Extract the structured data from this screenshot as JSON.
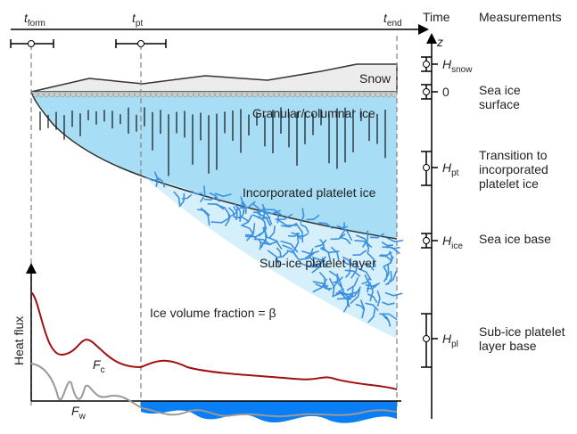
{
  "header": {
    "time": "Time",
    "measurements": "Measurements",
    "z": "z"
  },
  "times": [
    {
      "main": "t",
      "sub": "form"
    },
    {
      "main": "t",
      "sub": "pt"
    },
    {
      "main": "t",
      "sub": "end"
    }
  ],
  "layers": {
    "snow": "Snow",
    "granular": "Granular/columnar ice",
    "incorporated": "Incorporated platelet ice",
    "sub_ice": "Sub-ice platelet layer",
    "fraction": "Ice volume fraction = β"
  },
  "measurements": [
    {
      "symbol": {
        "main": "H",
        "sub": "snow"
      }
    },
    {
      "symbol": {
        "main": "0",
        "sub": ""
      },
      "label": [
        "Sea ice",
        "surface"
      ]
    },
    {
      "symbol": {
        "main": "H",
        "sub": "pt"
      },
      "label": [
        "Transition to",
        "incorporated",
        "platelet ice"
      ]
    },
    {
      "symbol": {
        "main": "H",
        "sub": "ice"
      },
      "label": [
        "Sea ice base"
      ]
    },
    {
      "symbol": {
        "main": "H",
        "sub": "pl"
      },
      "label": [
        "Sub-ice platelet",
        "layer base"
      ]
    }
  ],
  "heat": {
    "axis": "Heat flux",
    "fc": {
      "main": "F",
      "sub": "c"
    },
    "fw": {
      "main": "F",
      "sub": "w"
    }
  }
}
